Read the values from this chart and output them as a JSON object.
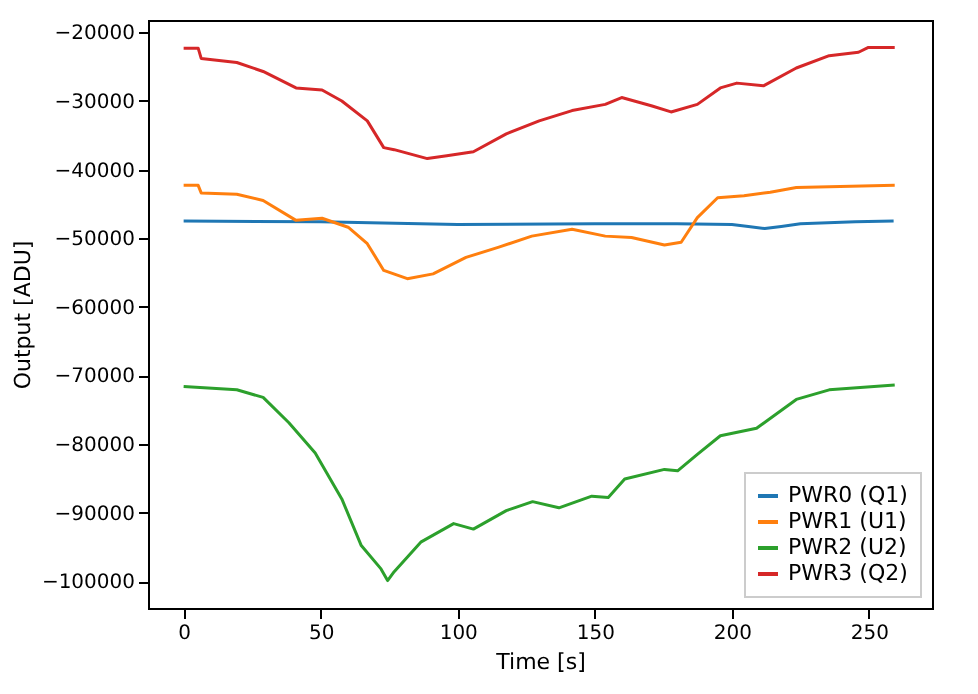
{
  "chart_data": {
    "type": "line",
    "xlabel": "Time [s]",
    "ylabel": "Output [ADU]",
    "xlim": [
      -13,
      273
    ],
    "ylim": [
      -103900,
      -18200
    ],
    "xticks": [
      0,
      50,
      100,
      150,
      200,
      250
    ],
    "yticks": [
      -100000,
      -90000,
      -80000,
      -70000,
      -60000,
      -50000,
      -40000,
      -30000,
      -20000
    ],
    "grid": false,
    "legend": "bottom right",
    "line_style": "solid",
    "marker": "none",
    "series": [
      {
        "name": "PWR0 (Q1)",
        "color": "#1f77b4",
        "x": [
          0,
          50,
          100,
          150,
          180,
          200,
          206,
          212,
          218,
          225,
          245,
          259
        ],
        "values": [
          -47500,
          -47600,
          -48000,
          -47900,
          -47900,
          -48000,
          -48300,
          -48600,
          -48300,
          -47900,
          -47600,
          -47500
        ]
      },
      {
        "name": "PWR1 (U1)",
        "color": "#ff7f0e",
        "x": [
          0,
          5.3,
          6.4,
          19.4,
          29,
          41,
          50.5,
          60,
          67,
          73,
          81.6,
          91,
          103,
          115,
          127,
          141.7,
          153.8,
          163.4,
          175.4,
          181.5,
          187.4,
          194.8,
          204.4,
          214,
          223.5,
          235.5,
          259.4
        ],
        "values": [
          -42300,
          -42300,
          -43400,
          -43600,
          -44500,
          -47400,
          -47100,
          -48400,
          -50800,
          -54700,
          -55900,
          -55200,
          -52800,
          -51300,
          -49700,
          -48700,
          -49700,
          -49900,
          -51000,
          -50600,
          -47000,
          -44100,
          -43800,
          -43300,
          -42600,
          -42500,
          -42300
        ]
      },
      {
        "name": "PWR2 (U2)",
        "color": "#2ca02c",
        "x": [
          0,
          19.4,
          29,
          38.4,
          48,
          57.7,
          64.8,
          72,
          74.4,
          76.8,
          86.5,
          98.5,
          105.7,
          117.7,
          127.3,
          136.9,
          148.9,
          154.9,
          160.9,
          175.4,
          180.2,
          187.4,
          195.8,
          209,
          223.5,
          235.5,
          259.4
        ],
        "values": [
          -71600,
          -72100,
          -73200,
          -76900,
          -81300,
          -88000,
          -94800,
          -98200,
          -99900,
          -98600,
          -94300,
          -91600,
          -92400,
          -89700,
          -88400,
          -89300,
          -87600,
          -87800,
          -85100,
          -83700,
          -83900,
          -81500,
          -78800,
          -77700,
          -73500,
          -72100,
          -71400
        ]
      },
      {
        "name": "PWR3 (Q2)",
        "color": "#d62728",
        "x": [
          0,
          5.3,
          6.4,
          19.4,
          29,
          41,
          50.5,
          57.7,
          67,
          73,
          76.8,
          88.9,
          96,
          105.7,
          117.7,
          129.7,
          141.7,
          153.8,
          159.8,
          170.6,
          177.8,
          187.4,
          195.8,
          201.8,
          211.5,
          223.5,
          235.5,
          246.2,
          249.8,
          259.4
        ],
        "values": [
          -22300,
          -22300,
          -23800,
          -24400,
          -25700,
          -28100,
          -28400,
          -30000,
          -32900,
          -36800,
          -37100,
          -38400,
          -38000,
          -37400,
          -34800,
          -32900,
          -31400,
          -30500,
          -29500,
          -30700,
          -31600,
          -30500,
          -28100,
          -27400,
          -27800,
          -25200,
          -23400,
          -22900,
          -22200,
          -22200
        ]
      }
    ]
  }
}
